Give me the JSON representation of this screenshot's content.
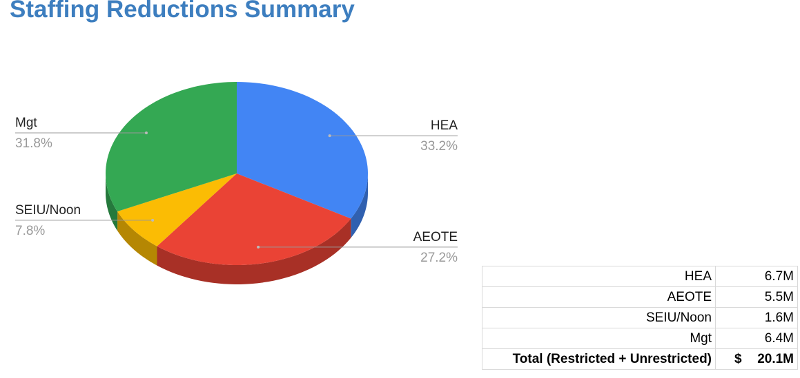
{
  "title": "Staffing Reductions Summary",
  "chart_data": {
    "type": "pie",
    "categories": [
      "HEA",
      "AEOTE",
      "SEIU/Noon",
      "Mgt"
    ],
    "values": [
      33.2,
      27.2,
      7.8,
      31.8
    ],
    "value_labels": [
      "33.2%",
      "27.2%",
      "7.8%",
      "31.8%"
    ],
    "colors": [
      "#4285f4",
      "#ea4335",
      "#fbbc04",
      "#34a853"
    ]
  },
  "table": {
    "rows": [
      [
        "HEA",
        "6.7M"
      ],
      [
        "AEOTE",
        "5.5M"
      ],
      [
        "SEIU/Noon",
        "1.6M"
      ],
      [
        "Mgt",
        "6.4M"
      ]
    ],
    "total": {
      "label": "Total (Restricted + Unrestricted)",
      "currency": "$",
      "value": "20.1M"
    }
  }
}
